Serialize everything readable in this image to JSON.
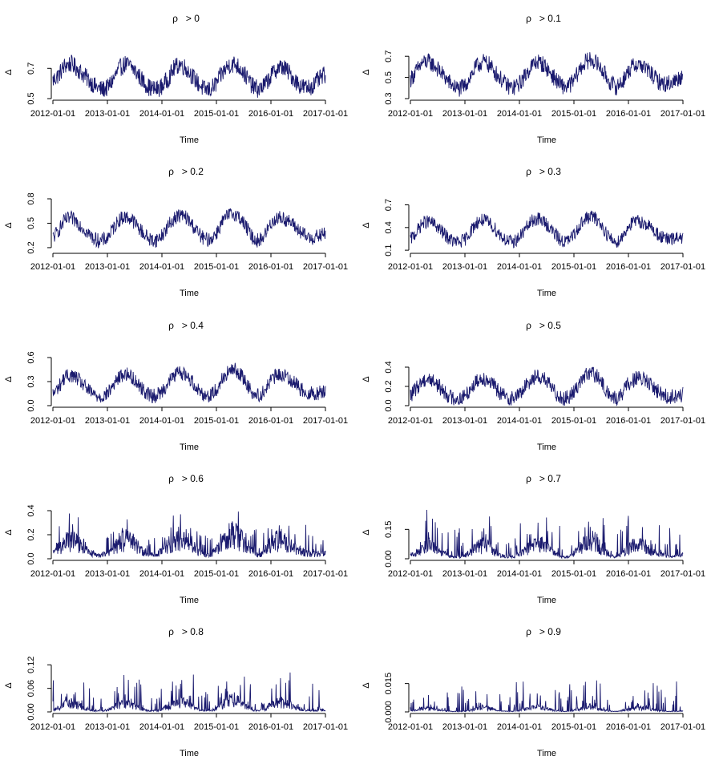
{
  "figure": {
    "description": "Multi-panel time series of Delta by correlation threshold"
  },
  "style": {
    "line_color": "#1a1a6e",
    "axis_color": "#000000",
    "background": "#ffffff"
  },
  "chart_data": [
    {
      "type": "line",
      "title_symbol": "ρ",
      "title_suffix": "> 0",
      "xlabel": "Time",
      "ylabel": "Δ",
      "x_ticks": [
        "2012-01-01",
        "2013-01-01",
        "2014-01-01",
        "2015-01-01",
        "2016-01-01",
        "2017-01-01"
      ],
      "y_ticks": [
        "0.5",
        "0.7"
      ],
      "ylim": [
        0.5,
        0.85
      ],
      "series": [
        {
          "name": "Delta",
          "x_range": [
            "2012-01-01",
            "2017-01-01"
          ],
          "values": [
            0.62,
            0.66,
            0.72,
            0.73,
            0.7,
            0.66,
            0.62,
            0.58,
            0.56,
            0.57,
            0.63,
            0.7,
            0.73,
            0.71,
            0.66,
            0.61,
            0.57,
            0.56,
            0.58,
            0.63,
            0.7,
            0.73,
            0.7,
            0.65,
            0.6,
            0.56,
            0.56,
            0.6,
            0.67,
            0.72,
            0.73,
            0.7,
            0.64,
            0.58,
            0.56,
            0.59,
            0.65,
            0.7,
            0.71,
            0.67,
            0.62,
            0.58,
            0.57,
            0.59,
            0.63,
            0.66
          ],
          "noise": 0.06
        }
      ]
    },
    {
      "type": "line",
      "title_symbol": "ρ",
      "title_suffix": "> 0.1",
      "xlabel": "Time",
      "ylabel": "Δ",
      "x_ticks": [
        "2012-01-01",
        "2013-01-01",
        "2014-01-01",
        "2015-01-01",
        "2016-01-01",
        "2017-01-01"
      ],
      "y_ticks": [
        "0.3",
        "0.5",
        "0.7"
      ],
      "ylim": [
        0.3,
        0.8
      ],
      "series": [
        {
          "name": "Delta",
          "x_range": [
            "2012-01-01",
            "2017-01-01"
          ],
          "values": [
            0.48,
            0.56,
            0.64,
            0.65,
            0.61,
            0.55,
            0.48,
            0.42,
            0.39,
            0.42,
            0.52,
            0.61,
            0.65,
            0.62,
            0.55,
            0.48,
            0.42,
            0.4,
            0.44,
            0.52,
            0.61,
            0.65,
            0.62,
            0.55,
            0.48,
            0.42,
            0.41,
            0.47,
            0.58,
            0.65,
            0.67,
            0.62,
            0.54,
            0.45,
            0.41,
            0.46,
            0.56,
            0.62,
            0.62,
            0.58,
            0.52,
            0.46,
            0.44,
            0.45,
            0.48,
            0.52
          ],
          "noise": 0.08
        }
      ]
    },
    {
      "type": "line",
      "title_symbol": "ρ",
      "title_suffix": "> 0.2",
      "xlabel": "Time",
      "ylabel": "Δ",
      "x_ticks": [
        "2012-01-01",
        "2013-01-01",
        "2014-01-01",
        "2015-01-01",
        "2016-01-01",
        "2017-01-01"
      ],
      "y_ticks": [
        "0.2",
        "0.5",
        "0.8"
      ],
      "ylim": [
        0.15,
        0.8
      ],
      "series": [
        {
          "name": "Delta",
          "x_range": [
            "2012-01-01",
            "2017-01-01"
          ],
          "values": [
            0.32,
            0.42,
            0.54,
            0.56,
            0.52,
            0.44,
            0.36,
            0.3,
            0.28,
            0.32,
            0.44,
            0.55,
            0.58,
            0.55,
            0.46,
            0.37,
            0.3,
            0.29,
            0.35,
            0.46,
            0.56,
            0.6,
            0.57,
            0.48,
            0.38,
            0.3,
            0.3,
            0.38,
            0.52,
            0.6,
            0.62,
            0.56,
            0.44,
            0.32,
            0.28,
            0.36,
            0.5,
            0.57,
            0.56,
            0.52,
            0.46,
            0.38,
            0.33,
            0.32,
            0.34,
            0.38
          ],
          "noise": 0.09
        }
      ]
    },
    {
      "type": "line",
      "title_symbol": "ρ",
      "title_suffix": "> 0.3",
      "xlabel": "Time",
      "ylabel": "Δ",
      "x_ticks": [
        "2012-01-01",
        "2013-01-01",
        "2014-01-01",
        "2015-01-01",
        "2016-01-01",
        "2017-01-01"
      ],
      "y_ticks": [
        "0.1",
        "0.4",
        "0.7"
      ],
      "ylim": [
        0.08,
        0.78
      ],
      "series": [
        {
          "name": "Delta",
          "x_range": [
            "2012-01-01",
            "2017-01-01"
          ],
          "values": [
            0.24,
            0.34,
            0.46,
            0.48,
            0.44,
            0.36,
            0.28,
            0.22,
            0.2,
            0.24,
            0.36,
            0.47,
            0.5,
            0.46,
            0.38,
            0.29,
            0.22,
            0.21,
            0.27,
            0.38,
            0.48,
            0.52,
            0.48,
            0.4,
            0.3,
            0.22,
            0.22,
            0.3,
            0.44,
            0.52,
            0.55,
            0.49,
            0.37,
            0.25,
            0.2,
            0.28,
            0.42,
            0.48,
            0.48,
            0.44,
            0.38,
            0.3,
            0.25,
            0.24,
            0.26,
            0.28
          ],
          "noise": 0.09
        }
      ]
    },
    {
      "type": "line",
      "title_symbol": "ρ",
      "title_suffix": "> 0.4",
      "xlabel": "Time",
      "ylabel": "Δ",
      "x_ticks": [
        "2012-01-01",
        "2013-01-01",
        "2014-01-01",
        "2015-01-01",
        "2016-01-01",
        "2017-01-01"
      ],
      "y_ticks": [
        "0.0",
        "0.3",
        "0.6"
      ],
      "ylim": [
        0.0,
        0.66
      ],
      "series": [
        {
          "name": "Delta",
          "x_range": [
            "2012-01-01",
            "2017-01-01"
          ],
          "values": [
            0.14,
            0.24,
            0.36,
            0.38,
            0.34,
            0.26,
            0.18,
            0.13,
            0.11,
            0.15,
            0.26,
            0.36,
            0.4,
            0.36,
            0.28,
            0.19,
            0.13,
            0.12,
            0.18,
            0.28,
            0.38,
            0.42,
            0.38,
            0.3,
            0.2,
            0.13,
            0.13,
            0.2,
            0.34,
            0.42,
            0.45,
            0.39,
            0.27,
            0.16,
            0.12,
            0.19,
            0.32,
            0.38,
            0.38,
            0.34,
            0.28,
            0.2,
            0.16,
            0.15,
            0.16,
            0.18
          ],
          "noise": 0.09
        }
      ]
    },
    {
      "type": "line",
      "title_symbol": "ρ",
      "title_suffix": "> 0.5",
      "xlabel": "Time",
      "ylabel": "Δ",
      "x_ticks": [
        "2012-01-01",
        "2013-01-01",
        "2014-01-01",
        "2015-01-01",
        "2016-01-01",
        "2017-01-01"
      ],
      "y_ticks": [
        "0.0",
        "0.2",
        "0.4"
      ],
      "ylim": [
        0.0,
        0.55
      ],
      "series": [
        {
          "name": "Delta",
          "x_range": [
            "2012-01-01",
            "2017-01-01"
          ],
          "values": [
            0.1,
            0.18,
            0.26,
            0.28,
            0.25,
            0.18,
            0.12,
            0.08,
            0.07,
            0.1,
            0.18,
            0.26,
            0.29,
            0.26,
            0.19,
            0.12,
            0.08,
            0.08,
            0.12,
            0.2,
            0.28,
            0.31,
            0.28,
            0.21,
            0.13,
            0.08,
            0.08,
            0.14,
            0.25,
            0.32,
            0.34,
            0.29,
            0.19,
            0.1,
            0.07,
            0.13,
            0.23,
            0.28,
            0.28,
            0.25,
            0.2,
            0.14,
            0.1,
            0.09,
            0.1,
            0.12
          ],
          "noise": 0.08
        }
      ]
    },
    {
      "type": "line",
      "title_symbol": "ρ",
      "title_suffix": "> 0.6",
      "xlabel": "Time",
      "ylabel": "Δ",
      "x_ticks": [
        "2012-01-01",
        "2013-01-01",
        "2014-01-01",
        "2015-01-01",
        "2016-01-01",
        "2017-01-01"
      ],
      "y_ticks": [
        "0.0",
        "0.2",
        "0.4"
      ],
      "ylim": [
        0.0,
        0.44
      ],
      "series": [
        {
          "name": "Delta",
          "x_range": [
            "2012-01-01",
            "2017-01-01"
          ],
          "values": [
            0.05,
            0.1,
            0.16,
            0.18,
            0.15,
            0.1,
            0.06,
            0.04,
            0.03,
            0.05,
            0.1,
            0.16,
            0.18,
            0.16,
            0.11,
            0.06,
            0.04,
            0.04,
            0.07,
            0.12,
            0.18,
            0.2,
            0.18,
            0.12,
            0.07,
            0.04,
            0.04,
            0.08,
            0.15,
            0.21,
            0.23,
            0.19,
            0.11,
            0.05,
            0.03,
            0.07,
            0.14,
            0.18,
            0.18,
            0.15,
            0.11,
            0.07,
            0.05,
            0.04,
            0.05,
            0.06
          ],
          "noise": 0.08
        }
      ]
    },
    {
      "type": "line",
      "title_symbol": "ρ",
      "title_suffix": "> 0.7",
      "xlabel": "Time",
      "ylabel": "Δ",
      "x_ticks": [
        "2012-01-01",
        "2013-01-01",
        "2014-01-01",
        "2015-01-01",
        "2016-01-01",
        "2017-01-01"
      ],
      "y_ticks": [
        "0.00",
        "0.15"
      ],
      "ylim": [
        0.0,
        0.27
      ],
      "series": [
        {
          "name": "Delta",
          "x_range": [
            "2012-01-01",
            "2017-01-01"
          ],
          "values": [
            0.02,
            0.04,
            0.07,
            0.08,
            0.06,
            0.04,
            0.02,
            0.01,
            0.01,
            0.02,
            0.04,
            0.07,
            0.08,
            0.07,
            0.04,
            0.02,
            0.01,
            0.01,
            0.03,
            0.05,
            0.08,
            0.09,
            0.08,
            0.05,
            0.03,
            0.01,
            0.01,
            0.03,
            0.07,
            0.1,
            0.11,
            0.08,
            0.05,
            0.02,
            0.01,
            0.03,
            0.06,
            0.08,
            0.08,
            0.06,
            0.04,
            0.03,
            0.02,
            0.01,
            0.02,
            0.02
          ],
          "noise": 0.06
        }
      ]
    },
    {
      "type": "line",
      "title_symbol": "ρ",
      "title_suffix": "> 0.8",
      "xlabel": "Time",
      "ylabel": "Δ",
      "x_ticks": [
        "2012-01-01",
        "2013-01-01",
        "2014-01-01",
        "2015-01-01",
        "2016-01-01",
        "2017-01-01"
      ],
      "y_ticks": [
        "0.00",
        "0.06",
        "0.12"
      ],
      "ylim": [
        0.0,
        0.135
      ],
      "series": [
        {
          "name": "Delta",
          "x_range": [
            "2012-01-01",
            "2017-01-01"
          ],
          "values": [
            0.006,
            0.012,
            0.022,
            0.026,
            0.02,
            0.012,
            0.006,
            0.003,
            0.003,
            0.006,
            0.013,
            0.022,
            0.026,
            0.022,
            0.014,
            0.007,
            0.003,
            0.003,
            0.008,
            0.016,
            0.026,
            0.03,
            0.026,
            0.017,
            0.008,
            0.003,
            0.003,
            0.01,
            0.022,
            0.032,
            0.034,
            0.027,
            0.015,
            0.006,
            0.003,
            0.009,
            0.02,
            0.026,
            0.026,
            0.021,
            0.014,
            0.008,
            0.005,
            0.004,
            0.005,
            0.006
          ],
          "noise": 0.03
        }
      ]
    },
    {
      "type": "line",
      "title_symbol": "ρ",
      "title_suffix": "> 0.9",
      "xlabel": "Time",
      "ylabel": "Δ",
      "x_ticks": [
        "2012-01-01",
        "2013-01-01",
        "2014-01-01",
        "2015-01-01",
        "2016-01-01",
        "2017-01-01"
      ],
      "y_ticks": [
        "0.000",
        "0.015"
      ],
      "ylim": [
        0.0,
        0.028
      ],
      "series": [
        {
          "name": "Delta",
          "x_range": [
            "2012-01-01",
            "2017-01-01"
          ],
          "values": [
            0.0005,
            0.001,
            0.002,
            0.0025,
            0.002,
            0.001,
            0.0005,
            0.0003,
            0.0003,
            0.0005,
            0.0012,
            0.002,
            0.0025,
            0.002,
            0.0012,
            0.0006,
            0.0003,
            0.0003,
            0.0007,
            0.0015,
            0.0025,
            0.003,
            0.0025,
            0.0015,
            0.0007,
            0.0003,
            0.0003,
            0.0009,
            0.002,
            0.003,
            0.0032,
            0.0025,
            0.0014,
            0.0005,
            0.0003,
            0.0008,
            0.0018,
            0.0024,
            0.0024,
            0.002,
            0.0013,
            0.0007,
            0.0004,
            0.0003,
            0.0004,
            0.0005
          ],
          "noise": 0.006
        }
      ]
    }
  ]
}
